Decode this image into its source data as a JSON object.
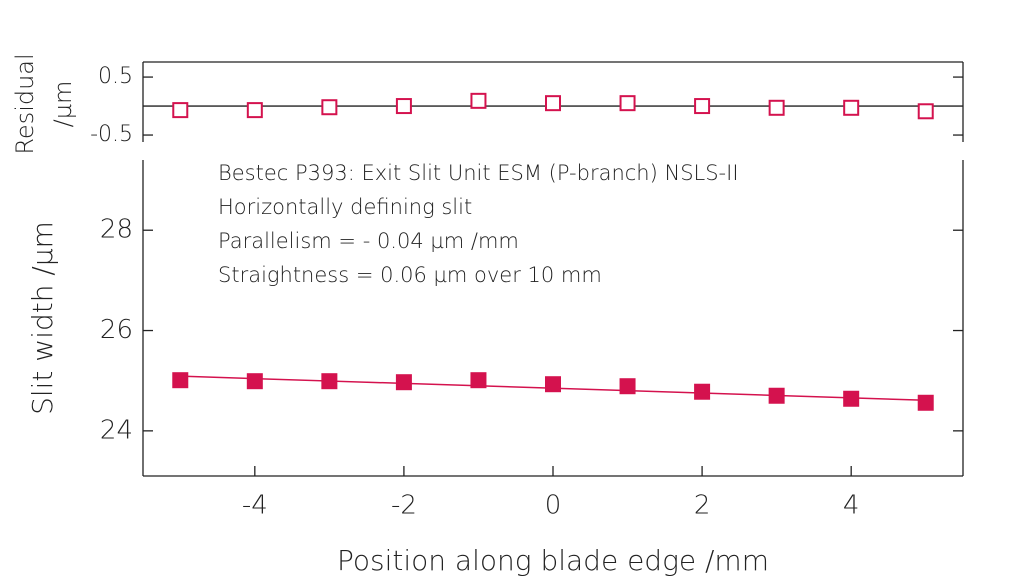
{
  "chart_data": [
    {
      "type": "scatter",
      "ylabel_lines": [
        "Residual",
        "/µm"
      ],
      "x": [
        -5,
        -4,
        -3,
        -2,
        -1,
        0,
        1,
        2,
        3,
        4,
        5
      ],
      "values": [
        -0.07,
        -0.07,
        -0.02,
        0,
        0.09,
        0.05,
        0.05,
        0,
        -0.03,
        -0.03,
        -0.09
      ],
      "color": "#d4124e",
      "marker": "open-square",
      "hline": 0,
      "xlim": [
        -5.5,
        5.5
      ],
      "ylim": [
        -0.62,
        0.76
      ],
      "yticks": [
        0.5,
        {
          "value": -0.5,
          "label": "-0.5"
        }
      ]
    },
    {
      "type": "scatter",
      "ylabel": "Slit width /µm",
      "xlabel": "Position along blade edge /mm",
      "annotations": [
        "Bestec P393: Exit Slit Unit ESM (P-branch) NSLS-II",
        "Horizontally defining slit",
        "Parallelism = - 0.04 µm /mm",
        "Straightness = 0.06 µm over 10 mm"
      ],
      "x": [
        -5,
        -4,
        -3,
        -2,
        -1,
        0,
        1,
        2,
        3,
        4,
        5
      ],
      "values": [
        25.01,
        24.99,
        24.99,
        24.97,
        25.01,
        24.93,
        24.89,
        24.78,
        24.7,
        24.64,
        24.56
      ],
      "color": "#d4124e",
      "marker": "filled-square",
      "fit": {
        "x": [
          -5,
          5
        ],
        "values": [
          25.09,
          24.61
        ]
      },
      "xlim": [
        -5.5,
        5.5
      ],
      "ylim": [
        23.1,
        29.4
      ],
      "xticks": [
        -4,
        -2,
        0,
        2,
        4
      ],
      "yticks": [
        24,
        26,
        28
      ]
    }
  ]
}
